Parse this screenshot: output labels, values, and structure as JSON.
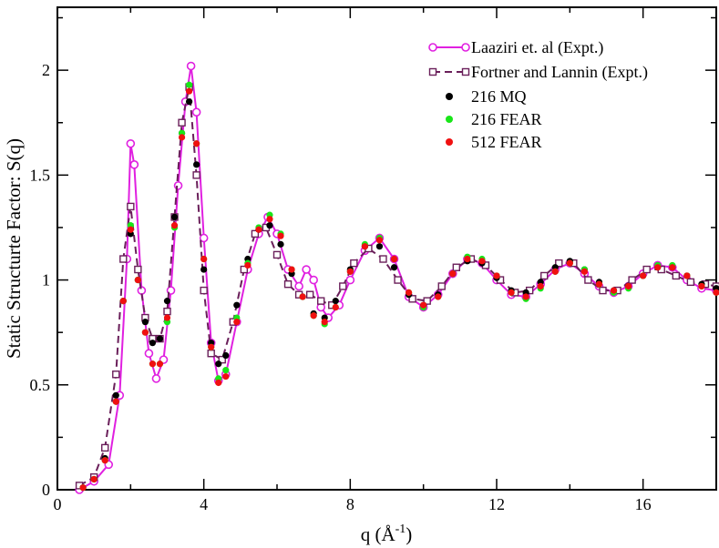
{
  "chart_data": {
    "type": "scatter",
    "title": "",
    "xlabel": "q (Å",
    "xlabel_sup": "-1",
    "xlabel_close": ")",
    "ylabel": "Static Structurte Factor: S(q)",
    "xlim": [
      0,
      18
    ],
    "ylim": [
      0,
      2.3
    ],
    "x_ticks": [
      0,
      4,
      8,
      12,
      16
    ],
    "x_tick_labels": [
      "0",
      "4",
      "8",
      "12",
      "16"
    ],
    "y_ticks": [
      0,
      0.5,
      1,
      1.5,
      2
    ],
    "y_tick_labels": [
      "0",
      "0.5",
      "1",
      "1.5",
      "2"
    ],
    "legend_position": "top-right",
    "series": [
      {
        "name": "Laaziri et. al (Expt.)",
        "style": "line-marker-ring",
        "color": "#e020e0",
        "points": [
          [
            0.6,
            0.0
          ],
          [
            1.0,
            0.04
          ],
          [
            1.4,
            0.12
          ],
          [
            1.7,
            0.45
          ],
          [
            1.9,
            1.1
          ],
          [
            2.0,
            1.65
          ],
          [
            2.1,
            1.55
          ],
          [
            2.3,
            0.95
          ],
          [
            2.5,
            0.65
          ],
          [
            2.7,
            0.53
          ],
          [
            2.9,
            0.62
          ],
          [
            3.1,
            0.95
          ],
          [
            3.3,
            1.45
          ],
          [
            3.5,
            1.85
          ],
          [
            3.65,
            2.02
          ],
          [
            3.8,
            1.8
          ],
          [
            4.0,
            1.2
          ],
          [
            4.2,
            0.7
          ],
          [
            4.4,
            0.52
          ],
          [
            4.6,
            0.55
          ],
          [
            4.9,
            0.8
          ],
          [
            5.2,
            1.05
          ],
          [
            5.5,
            1.22
          ],
          [
            5.75,
            1.3
          ],
          [
            6.0,
            1.22
          ],
          [
            6.3,
            1.05
          ],
          [
            6.6,
            0.97
          ],
          [
            6.8,
            1.05
          ],
          [
            7.0,
            1.0
          ],
          [
            7.2,
            0.87
          ],
          [
            7.4,
            0.82
          ],
          [
            7.7,
            0.88
          ],
          [
            8.0,
            1.0
          ],
          [
            8.4,
            1.14
          ],
          [
            8.8,
            1.2
          ],
          [
            9.2,
            1.1
          ],
          [
            9.6,
            0.92
          ],
          [
            10.0,
            0.87
          ],
          [
            10.4,
            0.93
          ],
          [
            10.8,
            1.03
          ],
          [
            11.2,
            1.1
          ],
          [
            11.6,
            1.08
          ],
          [
            12.0,
            1.0
          ],
          [
            12.4,
            0.93
          ],
          [
            12.8,
            0.92
          ],
          [
            13.2,
            0.98
          ],
          [
            13.6,
            1.05
          ],
          [
            14.0,
            1.08
          ],
          [
            14.4,
            1.03
          ],
          [
            14.8,
            0.97
          ],
          [
            15.2,
            0.94
          ],
          [
            15.6,
            0.97
          ],
          [
            16.0,
            1.03
          ],
          [
            16.4,
            1.07
          ],
          [
            16.8,
            1.06
          ],
          [
            17.2,
            1.0
          ],
          [
            17.6,
            0.96
          ],
          [
            18.0,
            0.95
          ]
        ]
      },
      {
        "name": "Fortner and Lannin (Expt.)",
        "style": "dash-marker-square",
        "color": "#6a1f5a",
        "points": [
          [
            0.6,
            0.02
          ],
          [
            1.0,
            0.06
          ],
          [
            1.3,
            0.2
          ],
          [
            1.6,
            0.55
          ],
          [
            1.8,
            1.1
          ],
          [
            2.0,
            1.35
          ],
          [
            2.2,
            1.05
          ],
          [
            2.4,
            0.82
          ],
          [
            2.6,
            0.72
          ],
          [
            2.8,
            0.72
          ],
          [
            3.0,
            0.85
          ],
          [
            3.2,
            1.3
          ],
          [
            3.4,
            1.75
          ],
          [
            3.6,
            1.92
          ],
          [
            3.8,
            1.5
          ],
          [
            4.0,
            0.95
          ],
          [
            4.2,
            0.65
          ],
          [
            4.5,
            0.62
          ],
          [
            4.8,
            0.8
          ],
          [
            5.1,
            1.05
          ],
          [
            5.4,
            1.22
          ],
          [
            5.7,
            1.25
          ],
          [
            6.0,
            1.12
          ],
          [
            6.3,
            0.98
          ],
          [
            6.6,
            0.93
          ],
          [
            6.9,
            0.93
          ],
          [
            7.2,
            0.9
          ],
          [
            7.5,
            0.88
          ],
          [
            7.8,
            0.97
          ],
          [
            8.1,
            1.08
          ],
          [
            8.5,
            1.15
          ],
          [
            8.9,
            1.1
          ],
          [
            9.3,
            1.0
          ],
          [
            9.7,
            0.91
          ],
          [
            10.1,
            0.9
          ],
          [
            10.5,
            0.97
          ],
          [
            10.9,
            1.06
          ],
          [
            11.3,
            1.1
          ],
          [
            11.7,
            1.07
          ],
          [
            12.1,
            1.0
          ],
          [
            12.5,
            0.94
          ],
          [
            12.9,
            0.95
          ],
          [
            13.3,
            1.02
          ],
          [
            13.7,
            1.08
          ],
          [
            14.1,
            1.08
          ],
          [
            14.5,
            1.0
          ],
          [
            14.9,
            0.95
          ],
          [
            15.3,
            0.95
          ],
          [
            15.7,
            1.0
          ],
          [
            16.1,
            1.05
          ],
          [
            16.5,
            1.05
          ],
          [
            16.9,
            1.02
          ],
          [
            17.3,
            0.99
          ],
          [
            17.7,
            0.98
          ],
          [
            18.0,
            0.97
          ]
        ]
      },
      {
        "name": "216 MQ",
        "style": "dot",
        "color": "#000000",
        "points": [
          [
            0.7,
            0.01
          ],
          [
            1.0,
            0.05
          ],
          [
            1.3,
            0.15
          ],
          [
            1.6,
            0.45
          ],
          [
            1.8,
            0.9
          ],
          [
            2.0,
            1.22
          ],
          [
            2.2,
            1.0
          ],
          [
            2.4,
            0.8
          ],
          [
            2.6,
            0.7
          ],
          [
            2.8,
            0.72
          ],
          [
            3.0,
            0.9
          ],
          [
            3.2,
            1.3
          ],
          [
            3.4,
            1.7
          ],
          [
            3.6,
            1.85
          ],
          [
            3.8,
            1.55
          ],
          [
            4.0,
            1.05
          ],
          [
            4.2,
            0.7
          ],
          [
            4.4,
            0.6
          ],
          [
            4.6,
            0.64
          ],
          [
            4.9,
            0.88
          ],
          [
            5.2,
            1.1
          ],
          [
            5.5,
            1.24
          ],
          [
            5.8,
            1.26
          ],
          [
            6.1,
            1.17
          ],
          [
            6.4,
            1.03
          ],
          [
            6.7,
            0.92
          ],
          [
            7.0,
            0.84
          ],
          [
            7.3,
            0.82
          ],
          [
            7.6,
            0.9
          ],
          [
            8.0,
            1.05
          ],
          [
            8.4,
            1.16
          ],
          [
            8.8,
            1.16
          ],
          [
            9.2,
            1.06
          ],
          [
            9.6,
            0.93
          ],
          [
            10.0,
            0.88
          ],
          [
            10.4,
            0.93
          ],
          [
            10.8,
            1.03
          ],
          [
            11.2,
            1.09
          ],
          [
            11.6,
            1.08
          ],
          [
            12.0,
            1.01
          ],
          [
            12.4,
            0.95
          ],
          [
            12.8,
            0.94
          ],
          [
            13.2,
            0.99
          ],
          [
            13.6,
            1.06
          ],
          [
            14.0,
            1.09
          ],
          [
            14.4,
            1.05
          ],
          [
            14.8,
            0.99
          ],
          [
            15.2,
            0.95
          ],
          [
            15.6,
            0.97
          ],
          [
            16.0,
            1.02
          ],
          [
            16.4,
            1.06
          ],
          [
            16.8,
            1.06
          ],
          [
            17.2,
            1.02
          ],
          [
            17.6,
            0.98
          ],
          [
            18.0,
            0.96
          ]
        ]
      },
      {
        "name": "216 FEAR",
        "style": "dot",
        "color": "#19e619",
        "points": [
          [
            0.7,
            0.01
          ],
          [
            1.0,
            0.05
          ],
          [
            1.3,
            0.14
          ],
          [
            1.6,
            0.42
          ],
          [
            1.8,
            0.9
          ],
          [
            2.0,
            1.26
          ],
          [
            2.2,
            1.0
          ],
          [
            2.4,
            0.75
          ],
          [
            2.6,
            0.6
          ],
          [
            2.8,
            0.6
          ],
          [
            3.0,
            0.8
          ],
          [
            3.2,
            1.25
          ],
          [
            3.4,
            1.7
          ],
          [
            3.6,
            1.93
          ],
          [
            3.8,
            1.65
          ],
          [
            4.0,
            1.1
          ],
          [
            4.2,
            0.68
          ],
          [
            4.4,
            0.53
          ],
          [
            4.6,
            0.57
          ],
          [
            4.9,
            0.82
          ],
          [
            5.2,
            1.08
          ],
          [
            5.5,
            1.25
          ],
          [
            5.8,
            1.31
          ],
          [
            6.1,
            1.22
          ],
          [
            6.4,
            1.05
          ],
          [
            6.7,
            0.92
          ],
          [
            7.0,
            0.83
          ],
          [
            7.3,
            0.79
          ],
          [
            7.6,
            0.87
          ],
          [
            8.0,
            1.04
          ],
          [
            8.4,
            1.17
          ],
          [
            8.8,
            1.2
          ],
          [
            9.2,
            1.1
          ],
          [
            9.6,
            0.94
          ],
          [
            10.0,
            0.87
          ],
          [
            10.4,
            0.92
          ],
          [
            10.8,
            1.03
          ],
          [
            11.2,
            1.11
          ],
          [
            11.6,
            1.1
          ],
          [
            12.0,
            1.02
          ],
          [
            12.4,
            0.94
          ],
          [
            12.8,
            0.91
          ],
          [
            13.2,
            0.96
          ],
          [
            13.6,
            1.04
          ],
          [
            14.0,
            1.08
          ],
          [
            14.4,
            1.05
          ],
          [
            14.8,
            0.98
          ],
          [
            15.2,
            0.94
          ],
          [
            15.6,
            0.96
          ],
          [
            16.0,
            1.02
          ],
          [
            16.4,
            1.07
          ],
          [
            16.8,
            1.07
          ],
          [
            17.2,
            1.02
          ],
          [
            17.6,
            0.97
          ],
          [
            18.0,
            0.94
          ]
        ]
      },
      {
        "name": "512  FEAR",
        "style": "dot",
        "color": "#f01010",
        "points": [
          [
            0.7,
            0.01
          ],
          [
            1.0,
            0.05
          ],
          [
            1.3,
            0.14
          ],
          [
            1.6,
            0.42
          ],
          [
            1.8,
            0.9
          ],
          [
            2.0,
            1.24
          ],
          [
            2.2,
            1.0
          ],
          [
            2.4,
            0.75
          ],
          [
            2.6,
            0.6
          ],
          [
            2.8,
            0.6
          ],
          [
            3.0,
            0.82
          ],
          [
            3.2,
            1.26
          ],
          [
            3.4,
            1.68
          ],
          [
            3.6,
            1.9
          ],
          [
            3.8,
            1.65
          ],
          [
            4.0,
            1.1
          ],
          [
            4.2,
            0.68
          ],
          [
            4.4,
            0.51
          ],
          [
            4.6,
            0.54
          ],
          [
            4.9,
            0.8
          ],
          [
            5.2,
            1.07
          ],
          [
            5.5,
            1.24
          ],
          [
            5.8,
            1.29
          ],
          [
            6.1,
            1.21
          ],
          [
            6.4,
            1.05
          ],
          [
            6.7,
            0.92
          ],
          [
            7.0,
            0.83
          ],
          [
            7.3,
            0.8
          ],
          [
            7.6,
            0.87
          ],
          [
            8.0,
            1.04
          ],
          [
            8.4,
            1.16
          ],
          [
            8.8,
            1.19
          ],
          [
            9.2,
            1.1
          ],
          [
            9.6,
            0.94
          ],
          [
            10.0,
            0.88
          ],
          [
            10.4,
            0.92
          ],
          [
            10.8,
            1.03
          ],
          [
            11.2,
            1.1
          ],
          [
            11.6,
            1.09
          ],
          [
            12.0,
            1.02
          ],
          [
            12.4,
            0.94
          ],
          [
            12.8,
            0.92
          ],
          [
            13.2,
            0.97
          ],
          [
            13.6,
            1.04
          ],
          [
            14.0,
            1.08
          ],
          [
            14.4,
            1.04
          ],
          [
            14.8,
            0.98
          ],
          [
            15.2,
            0.95
          ],
          [
            15.6,
            0.97
          ],
          [
            16.0,
            1.02
          ],
          [
            16.4,
            1.06
          ],
          [
            16.8,
            1.06
          ],
          [
            17.2,
            1.02
          ],
          [
            17.6,
            0.97
          ],
          [
            18.0,
            0.94
          ]
        ]
      }
    ]
  }
}
